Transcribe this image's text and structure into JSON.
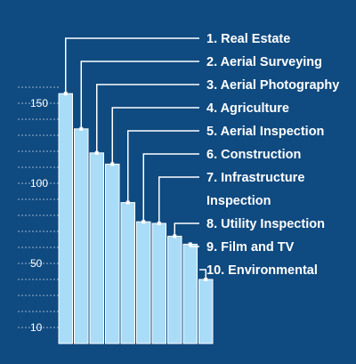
{
  "chart_data": {
    "type": "bar",
    "title": "",
    "xlabel": "",
    "ylabel": "",
    "categories": [
      "1. Real Estate",
      "2. Aerial Surveying",
      "3. Aerial Photography",
      "4. Agriculture",
      "5. Aerial Inspection",
      "6. Construction",
      "7. Infrastructure Inspection",
      "8. Utility Inspection",
      "9. Film and TV",
      "10. Environmental"
    ],
    "category_lines": [
      [
        "1. Real Estate"
      ],
      [
        "2. Aerial Surveying"
      ],
      [
        "3. Aerial Photography"
      ],
      [
        "4. Agriculture"
      ],
      [
        "5. Aerial Inspection"
      ],
      [
        "6. Construction"
      ],
      [
        "7. Infrastructure",
        "Inspection"
      ],
      [
        "8. Utility Inspection"
      ],
      [
        "9. Film and TV"
      ],
      [
        "10. Environmental"
      ]
    ],
    "values": [
      156,
      134,
      119,
      112,
      88,
      76,
      75,
      67,
      62,
      40
    ],
    "ylim": [
      0,
      170
    ],
    "yticks": [
      10,
      50,
      100,
      150
    ],
    "grid": true,
    "colors": {
      "background": "#0f4a80",
      "bar": "#a9dcf7",
      "bar_edge": "#ffffff",
      "text": "#ffffff",
      "grid": "#b8c9dc"
    }
  }
}
